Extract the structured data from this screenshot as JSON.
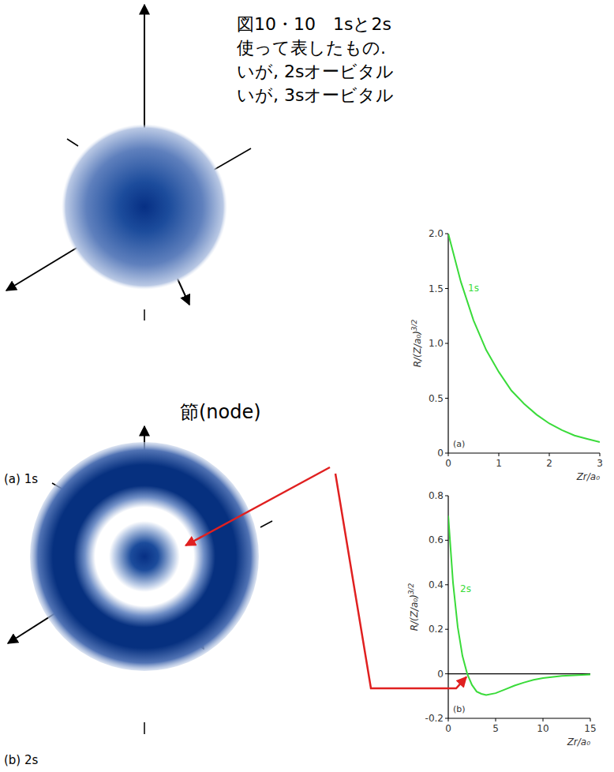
{
  "caption": {
    "lines": [
      "図10・10　1sと2s",
      "使って表したもの.",
      "いが, 2sオービタル",
      "いが, 3sオービタル"
    ]
  },
  "orbitals": [
    {
      "label": "(a) 1s"
    },
    {
      "label": "(b) 2s"
    }
  ],
  "node_label": "節(node)",
  "chart_data": [
    {
      "type": "line",
      "annotation": "(a)",
      "x_label": "Zr/a₀",
      "y_label": {
        "text": "R/(Z/a₀)",
        "superscript": "3/2"
      },
      "x": [
        0,
        0.25,
        0.5,
        0.75,
        1,
        1.25,
        1.5,
        1.75,
        2,
        2.25,
        2.5,
        2.75,
        3
      ],
      "series": [
        {
          "name": "1s",
          "color": "#3adb3a",
          "values": [
            2.0,
            1.56,
            1.21,
            0.94,
            0.74,
            0.57,
            0.45,
            0.35,
            0.27,
            0.21,
            0.16,
            0.13,
            0.1
          ]
        }
      ],
      "xlim": [
        0,
        3
      ],
      "xticks": [
        0,
        1,
        2,
        3
      ],
      "ylim": [
        0,
        2
      ],
      "yticks": [
        0,
        0.5,
        {
          "value": 1,
          "label": "1.0"
        },
        1.5,
        {
          "value": 2,
          "label": "2.0"
        }
      ]
    },
    {
      "type": "line",
      "annotation": "(b)",
      "x_label": "Zr/a₀",
      "y_label": {
        "text": "R/(Z/a₀)",
        "superscript": "3/2"
      },
      "x": [
        0,
        0.5,
        1,
        1.5,
        2,
        2.5,
        3,
        3.5,
        4,
        5,
        6,
        7,
        8,
        9,
        10,
        12,
        15
      ],
      "series": [
        {
          "name": "2s",
          "color": "#3adb3a",
          "values": [
            0.71,
            0.41,
            0.21,
            0.08,
            0,
            -0.05,
            -0.08,
            -0.09,
            -0.095,
            -0.087,
            -0.07,
            -0.053,
            -0.039,
            -0.027,
            -0.019,
            -0.009,
            -0.003
          ]
        }
      ],
      "xlim": [
        0,
        15
      ],
      "xticks": [
        0,
        5,
        10,
        15
      ],
      "ylim": [
        -0.2,
        0.8
      ],
      "yticks": [
        -0.2,
        0,
        0.2,
        0.4,
        0.6,
        0.8
      ]
    }
  ]
}
